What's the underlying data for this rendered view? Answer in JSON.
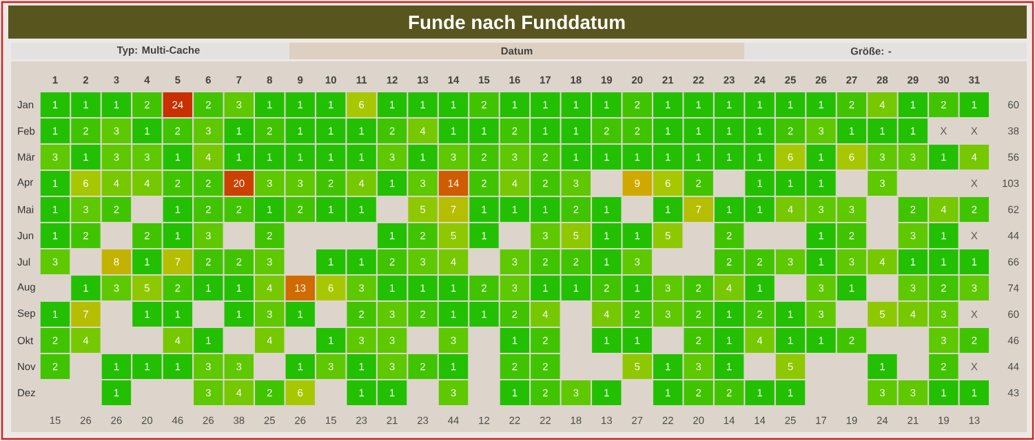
{
  "chart_data": {
    "type": "heatmap",
    "title": "Funde nach Funddatum",
    "xlabel": "Datum",
    "annotations": [
      "Typ: Multi-Cache",
      "Größe: -"
    ],
    "categories": [
      "1",
      "2",
      "3",
      "4",
      "5",
      "6",
      "7",
      "8",
      "9",
      "10",
      "11",
      "12",
      "13",
      "14",
      "15",
      "16",
      "17",
      "18",
      "19",
      "20",
      "21",
      "22",
      "23",
      "24",
      "25",
      "26",
      "27",
      "28",
      "29",
      "30",
      "31"
    ],
    "y_categories": [
      "Jan",
      "Feb",
      "Mär",
      "Apr",
      "Mai",
      "Jun",
      "Jul",
      "Aug",
      "Sep",
      "Okt",
      "Nov",
      "Dez"
    ],
    "y2_categories": [
      "60",
      "38",
      "56",
      "103",
      "62",
      "44",
      "66",
      "74",
      "60",
      "46",
      "44",
      "43"
    ],
    "totals": [
      "15",
      "26",
      "26",
      "20",
      "46",
      "26",
      "38",
      "25",
      "26",
      "15",
      "23",
      "21",
      "23",
      "44",
      "12",
      "22",
      "22",
      "18",
      "13",
      "27",
      "22",
      "20",
      "14",
      "14",
      "25",
      "17",
      "19",
      "24",
      "21",
      "19",
      "13"
    ],
    "cells": [
      [
        1,
        1,
        1,
        2,
        24,
        2,
        3,
        1,
        1,
        1,
        6,
        1,
        1,
        1,
        2,
        1,
        1,
        1,
        1,
        2,
        1,
        1,
        1,
        1,
        1,
        1,
        2,
        4,
        1,
        2,
        1
      ],
      [
        1,
        2,
        3,
        1,
        2,
        3,
        1,
        2,
        1,
        1,
        1,
        2,
        4,
        1,
        1,
        2,
        1,
        1,
        2,
        2,
        1,
        1,
        1,
        1,
        2,
        3,
        1,
        1,
        1,
        null,
        null
      ],
      [
        3,
        1,
        3,
        3,
        1,
        4,
        1,
        1,
        1,
        1,
        1,
        3,
        1,
        3,
        2,
        3,
        2,
        1,
        1,
        1,
        1,
        1,
        1,
        1,
        6,
        1,
        6,
        3,
        3,
        1,
        4
      ],
      [
        1,
        6,
        4,
        4,
        2,
        2,
        20,
        3,
        3,
        2,
        4,
        1,
        3,
        14,
        2,
        4,
        2,
        3,
        null,
        9,
        6,
        2,
        null,
        1,
        1,
        1,
        null,
        3,
        null,
        null,
        null
      ],
      [
        1,
        3,
        2,
        null,
        1,
        2,
        2,
        1,
        2,
        1,
        1,
        null,
        5,
        7,
        1,
        1,
        1,
        2,
        1,
        null,
        1,
        7,
        1,
        1,
        4,
        3,
        3,
        null,
        2,
        4,
        2
      ],
      [
        1,
        2,
        null,
        2,
        1,
        3,
        null,
        2,
        null,
        null,
        null,
        1,
        2,
        5,
        1,
        null,
        3,
        5,
        1,
        1,
        5,
        null,
        2,
        null,
        null,
        1,
        2,
        null,
        3,
        1,
        null
      ],
      [
        3,
        null,
        8,
        1,
        7,
        2,
        2,
        3,
        null,
        1,
        1,
        2,
        3,
        4,
        null,
        3,
        2,
        2,
        1,
        3,
        null,
        null,
        2,
        2,
        3,
        1,
        3,
        4,
        1,
        1,
        1
      ],
      [
        null,
        1,
        3,
        5,
        2,
        1,
        1,
        4,
        13,
        6,
        3,
        1,
        1,
        1,
        2,
        3,
        1,
        1,
        2,
        1,
        3,
        2,
        4,
        1,
        null,
        3,
        1,
        null,
        3,
        2,
        3
      ],
      [
        1,
        7,
        null,
        1,
        1,
        null,
        1,
        3,
        1,
        null,
        2,
        3,
        2,
        1,
        1,
        2,
        4,
        null,
        4,
        2,
        3,
        2,
        1,
        2,
        1,
        3,
        null,
        5,
        4,
        3,
        null
      ],
      [
        2,
        4,
        null,
        null,
        4,
        1,
        null,
        4,
        null,
        1,
        3,
        3,
        null,
        3,
        null,
        1,
        2,
        null,
        1,
        1,
        null,
        2,
        1,
        4,
        1,
        1,
        2,
        null,
        null,
        3,
        2
      ],
      [
        2,
        null,
        1,
        1,
        1,
        3,
        3,
        null,
        1,
        3,
        1,
        3,
        2,
        1,
        null,
        2,
        2,
        null,
        null,
        5,
        1,
        3,
        1,
        null,
        5,
        null,
        null,
        1,
        null,
        2,
        null
      ],
      [
        null,
        null,
        1,
        null,
        null,
        3,
        4,
        2,
        6,
        null,
        1,
        1,
        null,
        3,
        null,
        1,
        2,
        3,
        1,
        null,
        1,
        2,
        2,
        1,
        1,
        null,
        null,
        3,
        3,
        1,
        1
      ]
    ],
    "cell_labels": [
      [
        "1",
        "1",
        "1",
        "2",
        "24",
        "2",
        "3",
        "1",
        "1",
        "1",
        "6",
        "1",
        "1",
        "1",
        "2",
        "1",
        "1",
        "1",
        "1",
        "2",
        "1",
        "1",
        "1",
        "1",
        "1",
        "1",
        "2",
        "4",
        "1",
        "2",
        "1"
      ],
      [
        "1",
        "2",
        "3",
        "1",
        "2",
        "3",
        "1",
        "2",
        "1",
        "1",
        "1",
        "2",
        "4",
        "1",
        "1",
        "2",
        "1",
        "1",
        "2",
        "2",
        "1",
        "1",
        "1",
        "1",
        "2",
        "3",
        "1",
        "1",
        "1",
        "X",
        "X"
      ],
      [
        "3",
        "1",
        "3",
        "3",
        "1",
        "4",
        "1",
        "1",
        "1",
        "1",
        "1",
        "3",
        "1",
        "3",
        "2",
        "3",
        "2",
        "1",
        "1",
        "1",
        "1",
        "1",
        "1",
        "1",
        "6",
        "1",
        "6",
        "3",
        "3",
        "1",
        "4"
      ],
      [
        "1",
        "6",
        "4",
        "4",
        "2",
        "2",
        "20",
        "3",
        "3",
        "2",
        "4",
        "1",
        "3",
        "14",
        "2",
        "4",
        "2",
        "3",
        null,
        "9",
        "6",
        "2",
        null,
        "1",
        "1",
        "1",
        null,
        "3",
        null,
        null,
        "X"
      ],
      [
        "1",
        "3",
        "2",
        null,
        "1",
        "2",
        "2",
        "1",
        "2",
        "1",
        "1",
        null,
        "5",
        "7",
        "1",
        "1",
        "1",
        "2",
        "1",
        null,
        "1",
        "7",
        "1",
        "1",
        "4",
        "3",
        "3",
        null,
        "2",
        "4",
        "2"
      ],
      [
        "1",
        "2",
        null,
        "2",
        "1",
        "3",
        null,
        "2",
        null,
        null,
        null,
        "1",
        "2",
        "5",
        "1",
        null,
        "3",
        "5",
        "1",
        "1",
        "5",
        null,
        "2",
        null,
        null,
        "1",
        "2",
        null,
        "3",
        "1",
        "X"
      ],
      [
        "3",
        null,
        "8",
        "1",
        "7",
        "2",
        "2",
        "3",
        null,
        "1",
        "1",
        "2",
        "3",
        "4",
        null,
        "3",
        "2",
        "2",
        "1",
        "3",
        null,
        null,
        "2",
        "2",
        "3",
        "1",
        "3",
        "4",
        "1",
        "1",
        "1"
      ],
      [
        null,
        "1",
        "3",
        "5",
        "2",
        "1",
        "1",
        "4",
        "13",
        "6",
        "3",
        "1",
        "1",
        "1",
        "2",
        "3",
        "1",
        "1",
        "2",
        "1",
        "3",
        "2",
        "4",
        "1",
        null,
        "3",
        "1",
        null,
        "3",
        "2",
        "3"
      ],
      [
        "1",
        "7",
        null,
        "1",
        "1",
        null,
        "1",
        "3",
        "1",
        null,
        "2",
        "3",
        "2",
        "1",
        "1",
        "2",
        "4",
        null,
        "4",
        "2",
        "3",
        "2",
        "1",
        "2",
        "1",
        "3",
        null,
        "5",
        "4",
        "3",
        "X"
      ],
      [
        "2",
        "4",
        null,
        null,
        "4",
        "1",
        null,
        "4",
        null,
        "1",
        "3",
        "3",
        null,
        "3",
        null,
        "1",
        "2",
        null,
        "1",
        "1",
        null,
        "2",
        "1",
        "4",
        "1",
        "1",
        "2",
        null,
        null,
        "3",
        "2"
      ],
      [
        "2",
        null,
        "1",
        "1",
        "1",
        "3",
        "3",
        null,
        "1",
        "3",
        "1",
        "3",
        "2",
        "1",
        null,
        "2",
        "2",
        null,
        null,
        "5",
        "1",
        "3",
        "1",
        null,
        "5",
        null,
        null,
        "1",
        null,
        "2",
        "X"
      ],
      [
        null,
        null,
        "1",
        null,
        null,
        "3",
        "4",
        "2",
        "6",
        null,
        "1",
        "1",
        null,
        "3",
        null,
        "1",
        "2",
        "3",
        "1",
        null,
        "1",
        "2",
        "2",
        "1",
        "1",
        null,
        null,
        "3",
        "3",
        "1",
        "1"
      ]
    ]
  }
}
